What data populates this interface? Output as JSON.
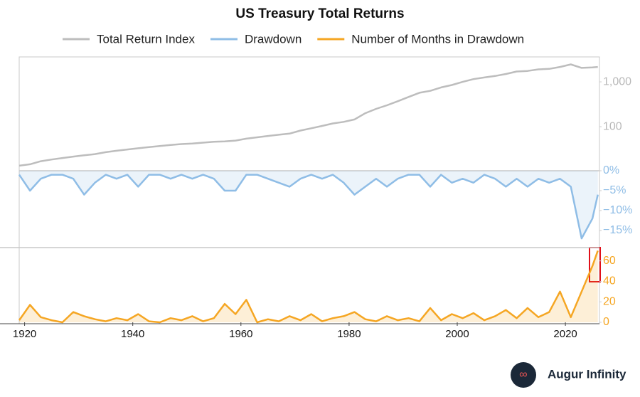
{
  "chart_data": {
    "type": "line",
    "title": "US Treasury Total Returns",
    "source": "Augur Infinity",
    "x": [
      1919,
      1921,
      1923,
      1925,
      1927,
      1929,
      1931,
      1933,
      1935,
      1937,
      1939,
      1941,
      1943,
      1945,
      1947,
      1949,
      1951,
      1953,
      1955,
      1957,
      1959,
      1961,
      1963,
      1965,
      1967,
      1969,
      1971,
      1973,
      1975,
      1977,
      1979,
      1981,
      1983,
      1985,
      1987,
      1989,
      1991,
      1993,
      1995,
      1997,
      1999,
      2001,
      2003,
      2005,
      2007,
      2009,
      2011,
      2013,
      2015,
      2017,
      2019,
      2021,
      2023,
      2025,
      2026
    ],
    "xlim": [
      1919,
      2026.3
    ],
    "xticks": [
      1920,
      1940,
      1960,
      1980,
      2000,
      2020
    ],
    "panels": [
      {
        "ylim": [
          10.4,
          3600
        ],
        "log_scale": true,
        "yticks": [
          100,
          {
            "value": 1000,
            "label": "1,000"
          }
        ],
        "tick_color": "#b8b8b8"
      },
      {
        "ylim": [
          -19.3,
          0
        ],
        "log_scale": false,
        "yticks": [
          {
            "value": 0,
            "label": "0%"
          },
          {
            "value": -5,
            "label": "−5%"
          },
          {
            "value": -10,
            "label": "−10%"
          },
          {
            "value": -15,
            "label": "−15%"
          }
        ],
        "tick_color": "#8fbde6"
      },
      {
        "ylim": [
          0,
          73
        ],
        "log_scale": false,
        "yticks": [
          0,
          20,
          40,
          60
        ],
        "tick_color": "#f5a623"
      }
    ],
    "series": [
      {
        "name": "Total Return Index",
        "color": "#bdbdbd",
        "panel": 0,
        "values": [
          13.5,
          14.5,
          17,
          18.5,
          20,
          21.5,
          23,
          24.5,
          27,
          29,
          31,
          33,
          35,
          37,
          39,
          41,
          42,
          44,
          46,
          47,
          49,
          54,
          58,
          62,
          66,
          70,
          82,
          92,
          104,
          118,
          128,
          145,
          200,
          250,
          300,
          370,
          460,
          570,
          630,
          750,
          850,
          1000,
          1150,
          1250,
          1350,
          1500,
          1700,
          1750,
          1900,
          1950,
          2150,
          2450,
          2050,
          2100,
          2150
        ]
      },
      {
        "name": "Drawdown",
        "color": "#8fbde6",
        "panel": 1,
        "values": [
          -1,
          -5,
          -2,
          -1,
          -1,
          -2,
          -6,
          -3,
          -1,
          -2,
          -1,
          -4,
          -1,
          -1,
          -2,
          -1,
          -2,
          -1,
          -2,
          -5,
          -5,
          -1,
          -1,
          -2,
          -3,
          -4,
          -2,
          -1,
          -2,
          -1,
          -3,
          -6,
          -4,
          -2,
          -4,
          -2,
          -1,
          -1,
          -4,
          -1,
          -3,
          -2,
          -3,
          -1,
          -2,
          -4,
          -2,
          -4,
          -2,
          -3,
          -2,
          -4,
          -17,
          -12,
          -6
        ]
      },
      {
        "name": "Number of Months in Drawdown",
        "color": "#f5a623",
        "panel": 2,
        "values": [
          2,
          17,
          5,
          2,
          0,
          10,
          6,
          3,
          1,
          4,
          2,
          8,
          1,
          0,
          4,
          2,
          6,
          1,
          4,
          18,
          8,
          22,
          0,
          3,
          1,
          6,
          2,
          8,
          1,
          4,
          6,
          10,
          3,
          1,
          6,
          2,
          4,
          1,
          14,
          2,
          8,
          4,
          9,
          2,
          6,
          12,
          4,
          14,
          5,
          10,
          30,
          5,
          30,
          55,
          70
        ]
      }
    ]
  }
}
